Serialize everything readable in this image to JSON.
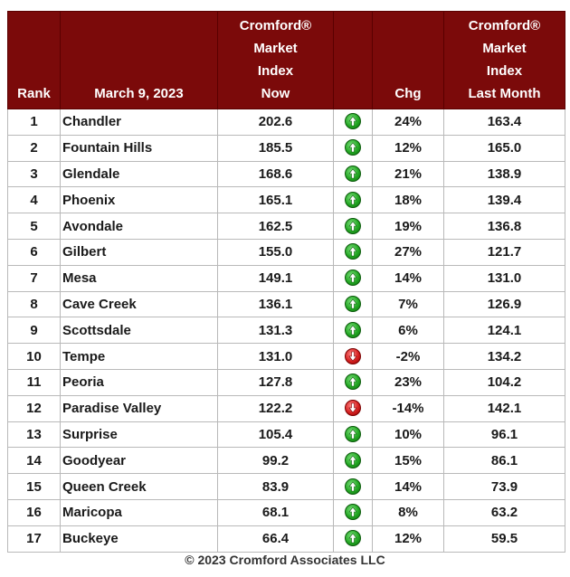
{
  "header": {
    "rank": "Rank",
    "date": "March 9, 2023",
    "now_lines": [
      "Cromford®",
      "Market",
      "Index",
      "Now"
    ],
    "chg": "Chg",
    "last_lines": [
      "Cromford®",
      "Market",
      "Index",
      "Last Month"
    ]
  },
  "colors": {
    "header_bg": "#7b0a0a",
    "up": "#23a823",
    "down": "#d62020"
  },
  "rows": [
    {
      "rank": "1",
      "city": "Chandler",
      "now": "202.6",
      "dir": "up",
      "chg": "24%",
      "last": "163.4"
    },
    {
      "rank": "2",
      "city": "Fountain Hills",
      "now": "185.5",
      "dir": "up",
      "chg": "12%",
      "last": "165.0"
    },
    {
      "rank": "3",
      "city": "Glendale",
      "now": "168.6",
      "dir": "up",
      "chg": "21%",
      "last": "138.9"
    },
    {
      "rank": "4",
      "city": "Phoenix",
      "now": "165.1",
      "dir": "up",
      "chg": "18%",
      "last": "139.4"
    },
    {
      "rank": "5",
      "city": "Avondale",
      "now": "162.5",
      "dir": "up",
      "chg": "19%",
      "last": "136.8"
    },
    {
      "rank": "6",
      "city": "Gilbert",
      "now": "155.0",
      "dir": "up",
      "chg": "27%",
      "last": "121.7"
    },
    {
      "rank": "7",
      "city": "Mesa",
      "now": "149.1",
      "dir": "up",
      "chg": "14%",
      "last": "131.0"
    },
    {
      "rank": "8",
      "city": "Cave Creek",
      "now": "136.1",
      "dir": "up",
      "chg": "7%",
      "last": "126.9"
    },
    {
      "rank": "9",
      "city": "Scottsdale",
      "now": "131.3",
      "dir": "up",
      "chg": "6%",
      "last": "124.1"
    },
    {
      "rank": "10",
      "city": "Tempe",
      "now": "131.0",
      "dir": "down",
      "chg": "-2%",
      "last": "134.2"
    },
    {
      "rank": "11",
      "city": "Peoria",
      "now": "127.8",
      "dir": "up",
      "chg": "23%",
      "last": "104.2"
    },
    {
      "rank": "12",
      "city": "Paradise Valley",
      "now": "122.2",
      "dir": "down",
      "chg": "-14%",
      "last": "142.1"
    },
    {
      "rank": "13",
      "city": "Surprise",
      "now": "105.4",
      "dir": "up",
      "chg": "10%",
      "last": "96.1"
    },
    {
      "rank": "14",
      "city": "Goodyear",
      "now": "99.2",
      "dir": "up",
      "chg": "15%",
      "last": "86.1"
    },
    {
      "rank": "15",
      "city": "Queen Creek",
      "now": "83.9",
      "dir": "up",
      "chg": "14%",
      "last": "73.9"
    },
    {
      "rank": "16",
      "city": "Maricopa",
      "now": "68.1",
      "dir": "up",
      "chg": "8%",
      "last": "63.2"
    },
    {
      "rank": "17",
      "city": "Buckeye",
      "now": "66.4",
      "dir": "up",
      "chg": "12%",
      "last": "59.5"
    }
  ],
  "footer": "© 2023 Cromford Associates LLC"
}
